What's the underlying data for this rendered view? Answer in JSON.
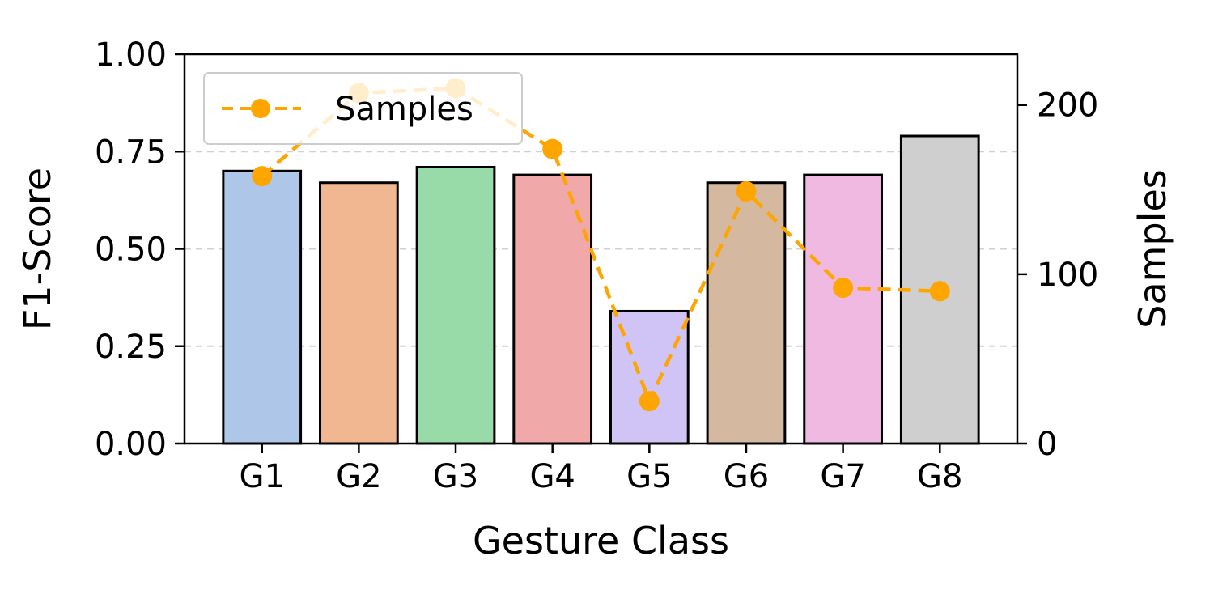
{
  "chart_data": {
    "type": "bar",
    "xlabel": "Gesture Class",
    "categories": [
      "G1",
      "G2",
      "G3",
      "G4",
      "G5",
      "G6",
      "G7",
      "G8"
    ],
    "bar_series": {
      "axis": "left",
      "ylabel": "F1-Score",
      "values": [
        0.7,
        0.67,
        0.71,
        0.69,
        0.34,
        0.67,
        0.69,
        0.79
      ],
      "colors": [
        "#aec7e8",
        "#f0b791",
        "#98dba8",
        "#f0a8a8",
        "#d0c3f5",
        "#d4b9a0",
        "#f0b9e1",
        "#cfcfcf"
      ],
      "ylim": [
        0,
        1.0
      ],
      "ticks": [
        "0.00",
        "0.25",
        "0.50",
        "0.75",
        "1.00"
      ]
    },
    "line_series": {
      "axis": "right",
      "name": "Samples",
      "ylabel": "Samples",
      "values": [
        158,
        207,
        210,
        174,
        25,
        149,
        92,
        90
      ],
      "color": "#ffa500",
      "ylim": [
        0,
        230
      ],
      "ticks": [
        "0",
        "100",
        "200"
      ]
    },
    "grid": "horizontal dashed",
    "legend": "upper-left"
  }
}
